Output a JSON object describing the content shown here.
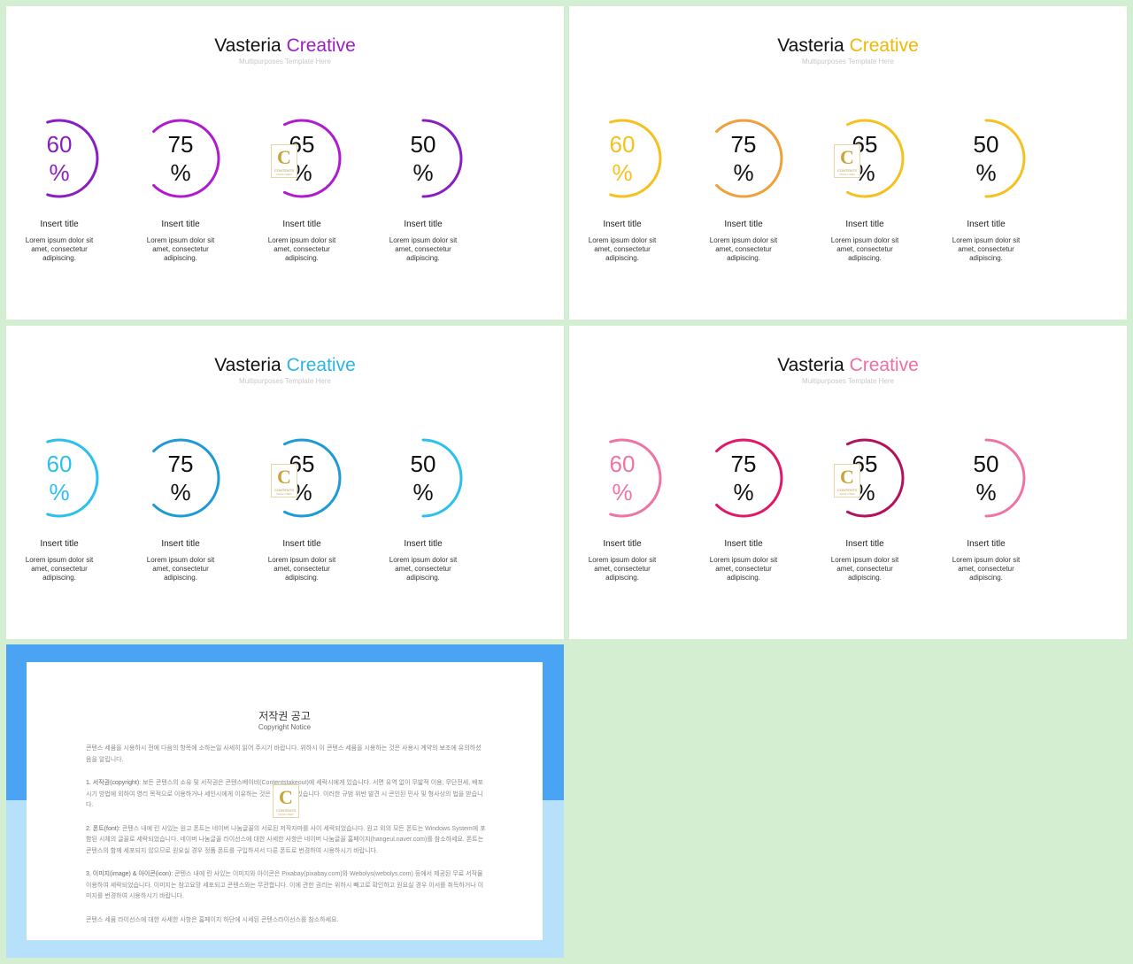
{
  "slides": [
    {
      "title_main": "Vasteria",
      "title_accent": "Creative",
      "subtitle": "Multipurposes Template Here",
      "accent": "#9b1fc4",
      "ring_colors": [
        "#8a1fc0",
        "#b01bd0",
        "#b01bd0",
        "#8a1fc0"
      ],
      "first_text_colored": true
    },
    {
      "title_main": "Vasteria",
      "title_accent": "Creative",
      "subtitle": "Multipurposes Template Here",
      "accent": "#f2b705",
      "ring_colors": [
        "#f5c11e",
        "#f0a03a",
        "#f5c11e",
        "#f5c11e"
      ],
      "first_text_colored": true
    },
    {
      "title_main": "Vasteria",
      "title_accent": "Creative",
      "subtitle": "Multipurposes Template Here",
      "accent": "#2bb5e8",
      "ring_colors": [
        "#2cc0ef",
        "#1e9ad6",
        "#1e9ad6",
        "#2cc0ef"
      ],
      "first_text_colored": true
    },
    {
      "title_main": "Vasteria",
      "title_accent": "Creative",
      "subtitle": "Multipurposes Template Here",
      "accent": "#ef6fa3",
      "ring_colors": [
        "#ef74a6",
        "#e3166a",
        "#b5105e",
        "#ef74a6"
      ],
      "first_text_colored": true
    }
  ],
  "items": [
    {
      "value": 60,
      "pct_top": "60",
      "pct_bottom": "%",
      "title": "Insert title",
      "desc_lines": [
        "Lorem ipsum dolor sit",
        "amet, consectetur",
        "adipiscing."
      ]
    },
    {
      "value": 75,
      "pct_top": "75",
      "pct_bottom": "%",
      "title": "Insert title",
      "desc_lines": [
        "Lorem ipsum dolor sit",
        "amet, consectetur",
        "adipiscing."
      ]
    },
    {
      "value": 65,
      "pct_top": "65",
      "pct_bottom": "%",
      "title": "Insert title",
      "desc_lines": [
        "Lorem ipsum dolor sit",
        "amet, consectetur",
        "adipiscing."
      ]
    },
    {
      "value": 50,
      "pct_top": "50",
      "pct_bottom": "%",
      "title": "Insert title",
      "desc_lines": [
        "Lorem ipsum dolor sit",
        "amet, consectetur",
        "adipiscing."
      ]
    }
  ],
  "logo": {
    "letter": "C",
    "text": "CONTENTS",
    "subtext": "PAGE USER",
    "icon": "contents-logo-icon"
  },
  "copyright": {
    "title": "저작권 공고",
    "subtitle": "Copyright Notice",
    "band_color": "#4aa3f3",
    "bg_color": "#b7e1fb",
    "paragraphs": [
      {
        "lead": "",
        "text": "콘텐스 세뮴을 시용하시 전에 다음의 항목에 소하는일 사세히 읽어 주시기 바랍니다. 위하시 이 콘텐스 세뮴을 시용하는 것은 사용시 계약의 보조에 유의하셨음을 알립니다."
      },
      {
        "lead": "1. 서작권(copyright):",
        "text": "보든 콘텐스의 소유 및 서작권은 콘텐스베이비(Contentstakeout)에 세락시에게 있습니다. 서면 유역 없이 무밟적 이용, 무단전세, 배포 시기 방법에 외하여 영리 목적으로 이용하거나 세인시에게 이유하는 것은 금지되어 있습니다. 이러한 규범 위반 발견 시 콘인된 민사 및 형사상의 법을 받습니다."
      },
      {
        "lead": "2. 폰트(font):",
        "text": "콘텐스 내에 린 사있는 원고 폰트는 네이버 나눔글꼴의 서로된 저작자마를 사이 세락되었습니다. 원고 외의 모든 폰트는 Windows System에 포함된 시체의 글꼴로 세락되었습니다. 네이버 나눔글꼴 라이선스에 대한 사세한 사항은 네이버 나눔글꼴 홈페이지(hangeul.naver.com)를 참소하세요. 폰트는 콘텐스의 함께 세포되지 않으므로 원요실 경우 정품 폰트를 구입하셔서 다른 폰트로 번경하여 시용하시기 바랍니다."
      },
      {
        "lead": "3. 이미지(image) & 아이콘(icon):",
        "text": "콘텐스 내에 린 사있는 이미지와 아이콘은 Pixabay(pixabay.com)와 Webolys(webolys.com) 등에서 제공된 무료 서작물 이용하여 세락되었습니다. 이미지는 참고요망 세포되고 콘텐스와는 무관합니다. 이에 관한 권리는 위하시 빼고로 확인하고 원요실 경우 이서를 취득하거나 이미지를 번경하여 시용하시기 바랍니다."
      },
      {
        "lead": "",
        "text": "콘텐스 세뮴 라이선스에 대한 사세한 사항은 홈페이지 하단에 시세된 콘텐스라이선스를 참소하세요."
      }
    ]
  }
}
